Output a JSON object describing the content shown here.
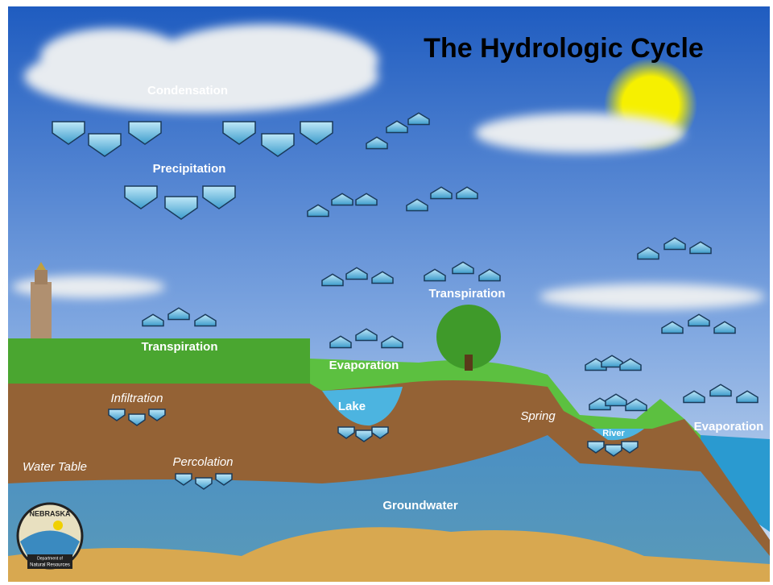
{
  "title": "The Hydrologic Cycle",
  "labels": {
    "condensation": "Condensation",
    "precipitation": "Precipitation",
    "transpiration_field": "Transpiration",
    "transpiration_sky": "Transpiration",
    "evaporation_lake": "Evaporation",
    "evaporation_sea": "Evaporation",
    "lake": "Lake",
    "infiltration": "Infiltration",
    "spring": "Spring",
    "river": "River",
    "water_table": "Water Table",
    "percolation": "Percolation",
    "groundwater": "Groundwater"
  },
  "logo": {
    "state": "NEBRASKA",
    "line1": "Department of",
    "line2": "Natural Resources"
  }
}
